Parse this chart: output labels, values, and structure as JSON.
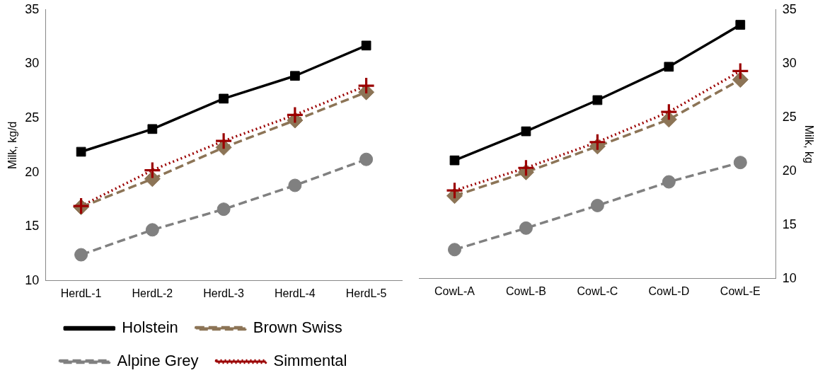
{
  "chart_data": [
    {
      "type": "line",
      "ylabel": "Milk, kg/d",
      "categories": [
        "HerdL-1",
        "HerdL-2",
        "HerdL-3",
        "HerdL-4",
        "HerdL-5"
      ],
      "ylim": [
        10,
        35
      ],
      "yticks": [
        10,
        15,
        20,
        25,
        30,
        35
      ],
      "grid": false,
      "legend": "bottom",
      "series": [
        {
          "name": "Holstein",
          "color": "#000000",
          "marker": "square",
          "line_style": "solid",
          "values": [
            21.9,
            24.0,
            26.8,
            28.9,
            31.7
          ]
        },
        {
          "name": "Brown Swiss",
          "color": "#8c7456",
          "marker": "diamond",
          "line_style": "dashed",
          "values": [
            16.8,
            19.4,
            22.3,
            24.8,
            27.4
          ]
        },
        {
          "name": "Alpine Grey",
          "color": "#808080",
          "marker": "circle",
          "line_style": "dashed",
          "values": [
            12.4,
            14.7,
            16.6,
            18.8,
            21.2
          ]
        },
        {
          "name": "Simmental",
          "color": "#9b0000",
          "marker": "cross",
          "line_style": "dotted",
          "values": [
            16.9,
            20.2,
            22.9,
            25.3,
            28.0
          ]
        }
      ]
    },
    {
      "type": "line",
      "y2label": "Milk, kg",
      "categories": [
        "CowL-A",
        "CowL-B",
        "CowL-C",
        "CowL-D",
        "CowL-E"
      ],
      "y2lim": [
        10,
        35
      ],
      "y2ticks": [
        10,
        15,
        20,
        25,
        30,
        35
      ],
      "grid": false,
      "series": [
        {
          "color": "#000000",
          "marker": "square",
          "line_style": "solid",
          "axis": "y2",
          "values": [
            21.0,
            23.7,
            26.6,
            29.7,
            33.6
          ]
        },
        {
          "color": "#8c7456",
          "marker": "diamond",
          "line_style": "dashed",
          "axis": "y2",
          "values": [
            17.7,
            19.9,
            22.3,
            24.8,
            28.5
          ]
        },
        {
          "color": "#808080",
          "marker": "circle",
          "line_style": "dashed",
          "axis": "y2",
          "values": [
            12.7,
            14.7,
            16.8,
            19.0,
            20.8
          ]
        },
        {
          "color": "#9b0000",
          "marker": "cross",
          "line_style": "dotted",
          "axis": "y2",
          "values": [
            18.2,
            20.3,
            22.7,
            25.5,
            29.3
          ]
        }
      ]
    }
  ]
}
